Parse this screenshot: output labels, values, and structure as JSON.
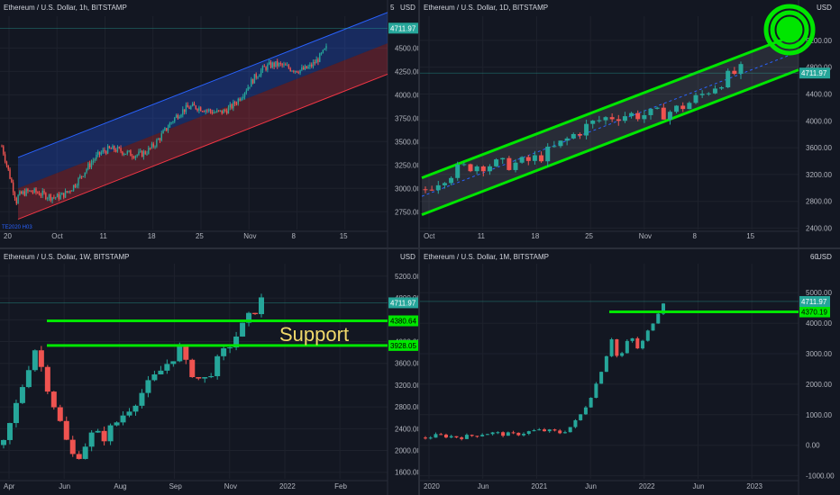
{
  "panels": [
    {
      "title": "Ethereum / U.S. Dollar, 1h, BITSTAMP",
      "currency": "USD",
      "price_label": "4711.97",
      "corner_label": "5",
      "lower_left_label": "TE2020 H03",
      "chart_data": {
        "type": "candlestick",
        "timeframe": "1h",
        "x_ticks": [
          "20",
          "Oct",
          "11",
          "18",
          "25",
          "Nov",
          "8",
          "15"
        ],
        "y_ticks": [
          2750,
          3000,
          3250,
          3500,
          3750,
          4000,
          4250,
          4500
        ],
        "ylim": [
          2560,
          4840
        ],
        "last_price": 4711.97,
        "regression_channel": {
          "start": 3000,
          "end": 4550,
          "upper_offset": 330,
          "lower_offset": 330,
          "upper_color": "#2962ff",
          "lower_color": "#f23645"
        }
      }
    },
    {
      "title": "Ethereum / U.S. Dollar, 1D, BITSTAMP",
      "currency": "USD",
      "price_label": "4711.97",
      "chart_data": {
        "type": "candlestick",
        "timeframe": "1D",
        "x_ticks": [
          "Oct",
          "11",
          "18",
          "25",
          "Nov",
          "8",
          "15"
        ],
        "y_ticks": [
          2400,
          2800,
          3200,
          3600,
          4000,
          4400,
          4800,
          5200
        ],
        "ylim": [
          2380,
          5560
        ],
        "last_price": 4711.97,
        "channel": {
          "upper_start": 3150,
          "upper_end": 5300,
          "lower_start": 2600,
          "lower_end": 4760,
          "color": "#00e600"
        },
        "target_marker": "concentric-circles"
      }
    },
    {
      "title": "Ethereum / U.S. Dollar, 1W, BITSTAMP",
      "currency": "USD",
      "price_label": "4711.97",
      "annotation": "Support",
      "chart_data": {
        "type": "candlestick",
        "timeframe": "1W",
        "x_ticks": [
          "Apr",
          "Jun",
          "Aug",
          "Sep",
          "Nov",
          "2022",
          "Feb"
        ],
        "y_ticks": [
          1600,
          2000,
          2400,
          2800,
          3200,
          3600,
          4000,
          4400,
          4800,
          5200
        ],
        "ylim": [
          1480,
          5430
        ],
        "last_price": 4711.97,
        "support_lines": [
          {
            "value": 4380.64,
            "label": "4380.64"
          },
          {
            "value": 3928.05,
            "label": "3928.05"
          }
        ],
        "line_color": "#00e600"
      }
    },
    {
      "title": "Ethereum / U.S. Dollar, 1M, BITSTAMP",
      "currency": "USD",
      "price_label": "4711.97",
      "corner_label": "60",
      "chart_data": {
        "type": "candlestick",
        "timeframe": "1M",
        "x_ticks": [
          "2020",
          "Jun",
          "2021",
          "Jun",
          "2022",
          "Jun",
          "2023"
        ],
        "y_ticks": [
          -1000,
          0,
          1000,
          2000,
          3000,
          4000,
          5000
        ],
        "ylim": [
          -1100,
          5950
        ],
        "last_price": 4711.97,
        "support_lines": [
          {
            "value": 4370.19,
            "label": "4370.19"
          }
        ],
        "line_color": "#00e600"
      }
    }
  ],
  "colors": {
    "up": "#26a69a",
    "down": "#ef5350",
    "background": "#131722",
    "grid": "#1e222d",
    "support": "#00e600"
  }
}
